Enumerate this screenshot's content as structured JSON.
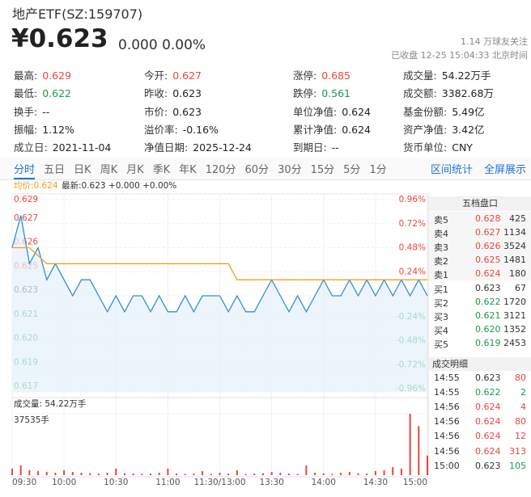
{
  "header": {
    "name": "地产ETF(SZ:159707)",
    "price": "¥0.623",
    "change": "0.000 0.00%",
    "followers": "1.14 万球友关注",
    "status": "已收盘 12-25 15:04:33 北京时间"
  },
  "stats": [
    [
      {
        "label": "最高:",
        "value": "0.629",
        "color": "#e8473e"
      },
      {
        "label": "今开:",
        "value": "0.627",
        "color": "#e8473e"
      },
      {
        "label": "涨停:",
        "value": "0.685",
        "color": "#e8473e"
      },
      {
        "label": "成交量:",
        "value": "54.22万手"
      }
    ],
    [
      {
        "label": "最低:",
        "value": "0.622",
        "color": "#1a9a4a"
      },
      {
        "label": "昨收:",
        "value": "0.623"
      },
      {
        "label": "跌停:",
        "value": "0.561",
        "color": "#1a9a4a"
      },
      {
        "label": "成交额:",
        "value": "3382.68万"
      }
    ],
    [
      {
        "label": "换手:",
        "value": "--"
      },
      {
        "label": "市价:",
        "value": "0.623"
      },
      {
        "label": "单位净值:",
        "value": "0.624"
      },
      {
        "label": "基金份额:",
        "value": "5.49亿"
      }
    ],
    [
      {
        "label": "振幅:",
        "value": "1.12%"
      },
      {
        "label": "溢价率:",
        "value": "-0.16%"
      },
      {
        "label": "累计净值:",
        "value": "0.624"
      },
      {
        "label": "资产净值:",
        "value": "3.42亿"
      }
    ],
    [
      {
        "label": "成立日:",
        "value": "2021-11-04"
      },
      {
        "label": "净值日期:",
        "value": "2025-12-24"
      },
      {
        "label": "到期日:",
        "value": "--"
      },
      {
        "label": "货币单位:",
        "value": "CNY"
      }
    ]
  ],
  "tabs": [
    "分时",
    "五日",
    "日K",
    "周K",
    "月K",
    "季K",
    "年K",
    "120分",
    "60分",
    "30分",
    "15分",
    "5分",
    "1分"
  ],
  "active_tab": 0,
  "tools": [
    "区间统计",
    "全屏展示"
  ],
  "order_book": {
    "title": "五档盘口",
    "rows": [
      {
        "side": "卖5",
        "price": "0.628",
        "volume": "425",
        "color": "#e8473e"
      },
      {
        "side": "卖4",
        "price": "0.627",
        "volume": "1134",
        "color": "#e8473e"
      },
      {
        "side": "卖3",
        "price": "0.626",
        "volume": "3524",
        "color": "#e8473e"
      },
      {
        "side": "卖2",
        "price": "0.625",
        "volume": "1481",
        "color": "#e8473e"
      },
      {
        "side": "卖1",
        "price": "0.624",
        "volume": "180",
        "color": "#e8473e"
      },
      {
        "side": "买1",
        "price": "0.623",
        "volume": "67",
        "color": "#333333"
      },
      {
        "side": "买2",
        "price": "0.622",
        "volume": "1720",
        "color": "#1a9a4a"
      },
      {
        "side": "买3",
        "price": "0.621",
        "volume": "3121",
        "color": "#1a9a4a"
      },
      {
        "side": "买4",
        "price": "0.620",
        "volume": "1352",
        "color": "#1a9a4a"
      },
      {
        "side": "买5",
        "price": "0.619",
        "volume": "2453",
        "color": "#1a9a4a"
      }
    ]
  },
  "trades": {
    "title": "成交明细",
    "rows": [
      {
        "time": "14:55",
        "price": "0.623",
        "volume": "80",
        "price_color": "#333333",
        "volume_color": "#e8473e"
      },
      {
        "time": "14:55",
        "price": "0.622",
        "volume": "2",
        "price_color": "#1a9a4a",
        "volume_color": "#1a9a4a"
      },
      {
        "time": "14:56",
        "price": "0.624",
        "volume": "4",
        "price_color": "#e8473e",
        "volume_color": "#e8473e"
      },
      {
        "time": "14:56",
        "price": "0.624",
        "volume": "80",
        "price_color": "#e8473e",
        "volume_color": "#e8473e"
      },
      {
        "time": "14:56",
        "price": "0.624",
        "volume": "12",
        "price_color": "#e8473e",
        "volume_color": "#e8473e"
      },
      {
        "time": "14:56",
        "price": "0.624",
        "volume": "313",
        "price_color": "#e8473e",
        "volume_color": "#e8473e"
      },
      {
        "time": "15:00",
        "price": "0.623",
        "volume": "105",
        "price_color": "#333333",
        "volume_color": "#1a9a4a"
      }
    ]
  },
  "chart_data": [
    {
      "type": "line",
      "categories": [
        "09:30",
        null,
        null,
        null,
        null,
        null,
        "10:00",
        null,
        null,
        null,
        null,
        null,
        "10:30",
        null,
        null,
        null,
        null,
        null,
        "11:00",
        null,
        null,
        null,
        null,
        null,
        "11:30/13:00",
        null,
        null,
        null,
        null,
        null,
        "13:30",
        null,
        null,
        null,
        null,
        null,
        "14:00",
        null,
        null,
        null,
        null,
        null,
        "14:30",
        null,
        null,
        null,
        null,
        null,
        "15:00"
      ],
      "series": [
        {
          "name": "最新:0.623 +0.000 +0.00%",
          "color": "#2f8fd8",
          "values": [
            0.626,
            0.628,
            0.625,
            0.626,
            0.624,
            0.625,
            0.624,
            0.623,
            0.624,
            0.624,
            0.623,
            0.622,
            0.623,
            0.622,
            0.623,
            0.623,
            0.622,
            0.623,
            0.622,
            0.622,
            0.623,
            0.622,
            0.623,
            0.623,
            0.623,
            0.622,
            0.623,
            0.622,
            0.622,
            0.623,
            0.624,
            0.623,
            0.622,
            0.623,
            0.622,
            0.623,
            0.624,
            0.623,
            0.623,
            0.624,
            0.623,
            0.624,
            0.623,
            0.624,
            0.623,
            0.624,
            0.623,
            0.624,
            0.623
          ]
        },
        {
          "name": "均价:0.624",
          "color": "#f0a020",
          "values": [
            0.626,
            0.626,
            0.626,
            0.6255,
            0.625,
            0.625,
            0.625,
            0.625,
            0.625,
            0.625,
            0.625,
            0.625,
            0.625,
            0.625,
            0.625,
            0.625,
            0.625,
            0.625,
            0.625,
            0.625,
            0.625,
            0.625,
            0.625,
            0.625,
            0.625,
            0.625,
            0.624,
            0.624,
            0.624,
            0.624,
            0.624,
            0.624,
            0.624,
            0.624,
            0.624,
            0.624,
            0.624,
            0.624,
            0.624,
            0.624,
            0.624,
            0.624,
            0.624,
            0.624,
            0.624,
            0.624,
            0.624,
            0.624,
            0.624
          ]
        }
      ],
      "ylim": [
        0.617,
        0.629
      ],
      "yticks": [
        {
          "value": 0.629,
          "label": "0.629"
        },
        {
          "value": 0.6275,
          "label": "0.627"
        },
        {
          "value": 0.626,
          "label": "0.626"
        },
        {
          "value": 0.6245,
          "label": "0.625"
        },
        {
          "value": 0.623,
          "label": "0.623"
        },
        {
          "value": 0.6215,
          "label": "0.621"
        },
        {
          "value": 0.62,
          "label": "0.620"
        },
        {
          "value": 0.6185,
          "label": "0.619"
        },
        {
          "value": 0.617,
          "label": "0.617"
        }
      ],
      "y2lim": [
        -0.96,
        0.96
      ],
      "y2ticks": [
        {
          "value": 0.96,
          "label": "0.96%"
        },
        {
          "value": 0.72,
          "label": "0.72%"
        },
        {
          "value": 0.48,
          "label": "0.48%"
        },
        {
          "value": 0.24,
          "label": "0.24%"
        },
        {
          "value": -0.24,
          "label": "-0.24%"
        },
        {
          "value": -0.48,
          "label": "-0.48%"
        },
        {
          "value": -0.72,
          "label": "-0.72%"
        },
        {
          "value": -0.96,
          "label": "-0.96%"
        }
      ],
      "up_color": "#e8473e",
      "down_color": "#1a9a4a",
      "grid": true
    },
    {
      "type": "bar",
      "title": "成交量: 54.22万手",
      "color": "#e8473e",
      "values": [
        4000,
        6000,
        3000,
        2500,
        2000,
        1500,
        3000,
        2000,
        1500,
        1200,
        1000,
        1500,
        4000,
        1200,
        1000,
        800,
        1000,
        1500,
        4000,
        1000,
        800,
        1000,
        2500,
        800,
        1500,
        1000,
        3000,
        800,
        1000,
        1200,
        2000,
        1500,
        1000,
        800,
        6000,
        1500,
        1000,
        800,
        1500,
        2000,
        1200,
        1000,
        2500,
        3000,
        5000,
        4000,
        37535,
        30000,
        12000
      ],
      "ylim": [
        0,
        37535
      ],
      "yticks": [
        {
          "value": 37535,
          "label": "37535手"
        }
      ]
    }
  ]
}
